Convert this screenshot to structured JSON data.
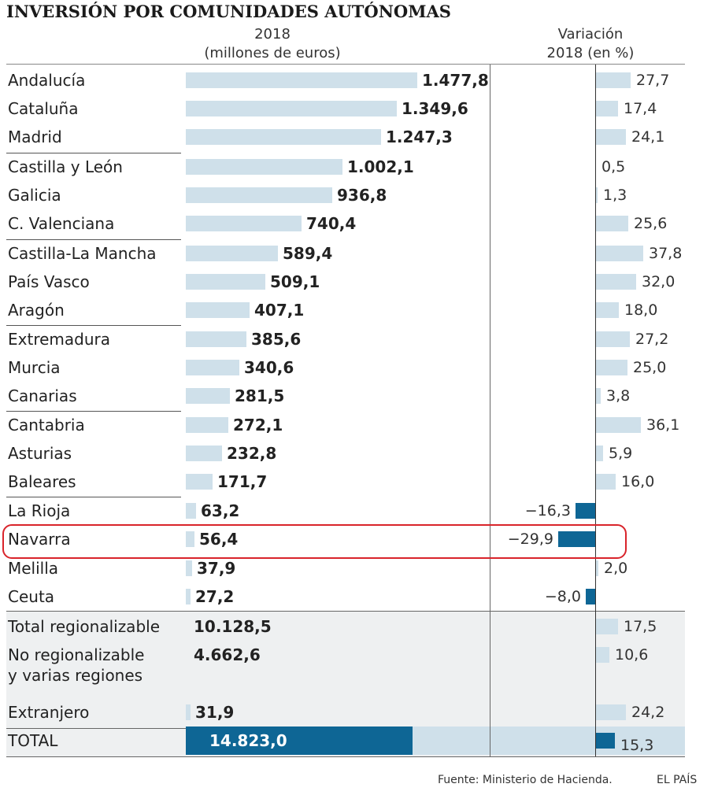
{
  "title": "INVERSIÓN POR COMUNIDADES AUTÓNOMAS",
  "header": {
    "col1_line1": "2018",
    "col1_line2": "(millones de euros)",
    "col2_line1": "Variación",
    "col2_line2": "2018 (en %)"
  },
  "footer": {
    "source": "Fuente: Ministerio de Hacienda.",
    "brand": "EL PAÍS"
  },
  "highlighted_row": "Navarra",
  "colors": {
    "bar_light": "#cfe0ea",
    "bar_dark": "#0e6695",
    "highlight": "#d9242b"
  },
  "chart_data": {
    "type": "bar",
    "title": "INVERSIÓN POR COMUNIDADES AUTÓNOMAS",
    "columns": [
      "2018 (millones de euros)",
      "Variación 2018 (en %)"
    ],
    "rows": [
      {
        "label": "Andalucía",
        "value": 1477.8,
        "value_text": "1.477,8",
        "change": 27.7,
        "change_text": "27,7"
      },
      {
        "label": "Cataluña",
        "value": 1349.6,
        "value_text": "1.349,6",
        "change": 17.4,
        "change_text": "17,4"
      },
      {
        "label": "Madrid",
        "value": 1247.3,
        "value_text": "1.247,3",
        "change": 24.1,
        "change_text": "24,1"
      },
      {
        "label": "Castilla y León",
        "value": 1002.1,
        "value_text": "1.002,1",
        "change": 0.5,
        "change_text": "0,5"
      },
      {
        "label": "Galicia",
        "value": 936.8,
        "value_text": "936,8",
        "change": 1.3,
        "change_text": "1,3"
      },
      {
        "label": "C. Valenciana",
        "value": 740.4,
        "value_text": "740,4",
        "change": 25.6,
        "change_text": "25,6"
      },
      {
        "label": "Castilla-La Mancha",
        "value": 589.4,
        "value_text": "589,4",
        "change": 37.8,
        "change_text": "37,8"
      },
      {
        "label": "País Vasco",
        "value": 509.1,
        "value_text": "509,1",
        "change": 32.0,
        "change_text": "32,0"
      },
      {
        "label": "Aragón",
        "value": 407.1,
        "value_text": "407,1",
        "change": 18.0,
        "change_text": "18,0"
      },
      {
        "label": "Extremadura",
        "value": 385.6,
        "value_text": "385,6",
        "change": 27.2,
        "change_text": "27,2"
      },
      {
        "label": "Murcia",
        "value": 340.6,
        "value_text": "340,6",
        "change": 25.0,
        "change_text": "25,0"
      },
      {
        "label": "Canarias",
        "value": 281.5,
        "value_text": "281,5",
        "change": 3.8,
        "change_text": "3,8"
      },
      {
        "label": "Cantabria",
        "value": 272.1,
        "value_text": "272,1",
        "change": 36.1,
        "change_text": "36,1"
      },
      {
        "label": "Asturias",
        "value": 232.8,
        "value_text": "232,8",
        "change": 5.9,
        "change_text": "5,9"
      },
      {
        "label": "Baleares",
        "value": 171.7,
        "value_text": "171,7",
        "change": 16.0,
        "change_text": "16,0"
      },
      {
        "label": "La Rioja",
        "value": 63.2,
        "value_text": "63,2",
        "change": -16.3,
        "change_text": "−16,3"
      },
      {
        "label": "Navarra",
        "value": 56.4,
        "value_text": "56,4",
        "change": -29.9,
        "change_text": "−29,9"
      },
      {
        "label": "Melilla",
        "value": 37.9,
        "value_text": "37,9",
        "change": 2.0,
        "change_text": "2,0"
      },
      {
        "label": "Ceuta",
        "value": 27.2,
        "value_text": "27,2",
        "change": -8.0,
        "change_text": "−8,0"
      },
      {
        "label": "Total regionalizable",
        "value": 10128.5,
        "value_text": "10.128,5",
        "change": 17.5,
        "change_text": "17,5",
        "no_bar": true
      },
      {
        "label": "No regionalizable",
        "label2": "y varias regiones",
        "value": 4662.6,
        "value_text": "4.662,6",
        "change": 10.6,
        "change_text": "10,6",
        "no_bar": true
      },
      {
        "label": "Extranjero",
        "value": 31.9,
        "value_text": "31,9",
        "change": 24.2,
        "change_text": "24,2"
      },
      {
        "label": "TOTAL",
        "value": 14823.0,
        "value_text": "14.823,0",
        "change": 15.3,
        "change_text": "15,3",
        "total": true
      }
    ]
  }
}
